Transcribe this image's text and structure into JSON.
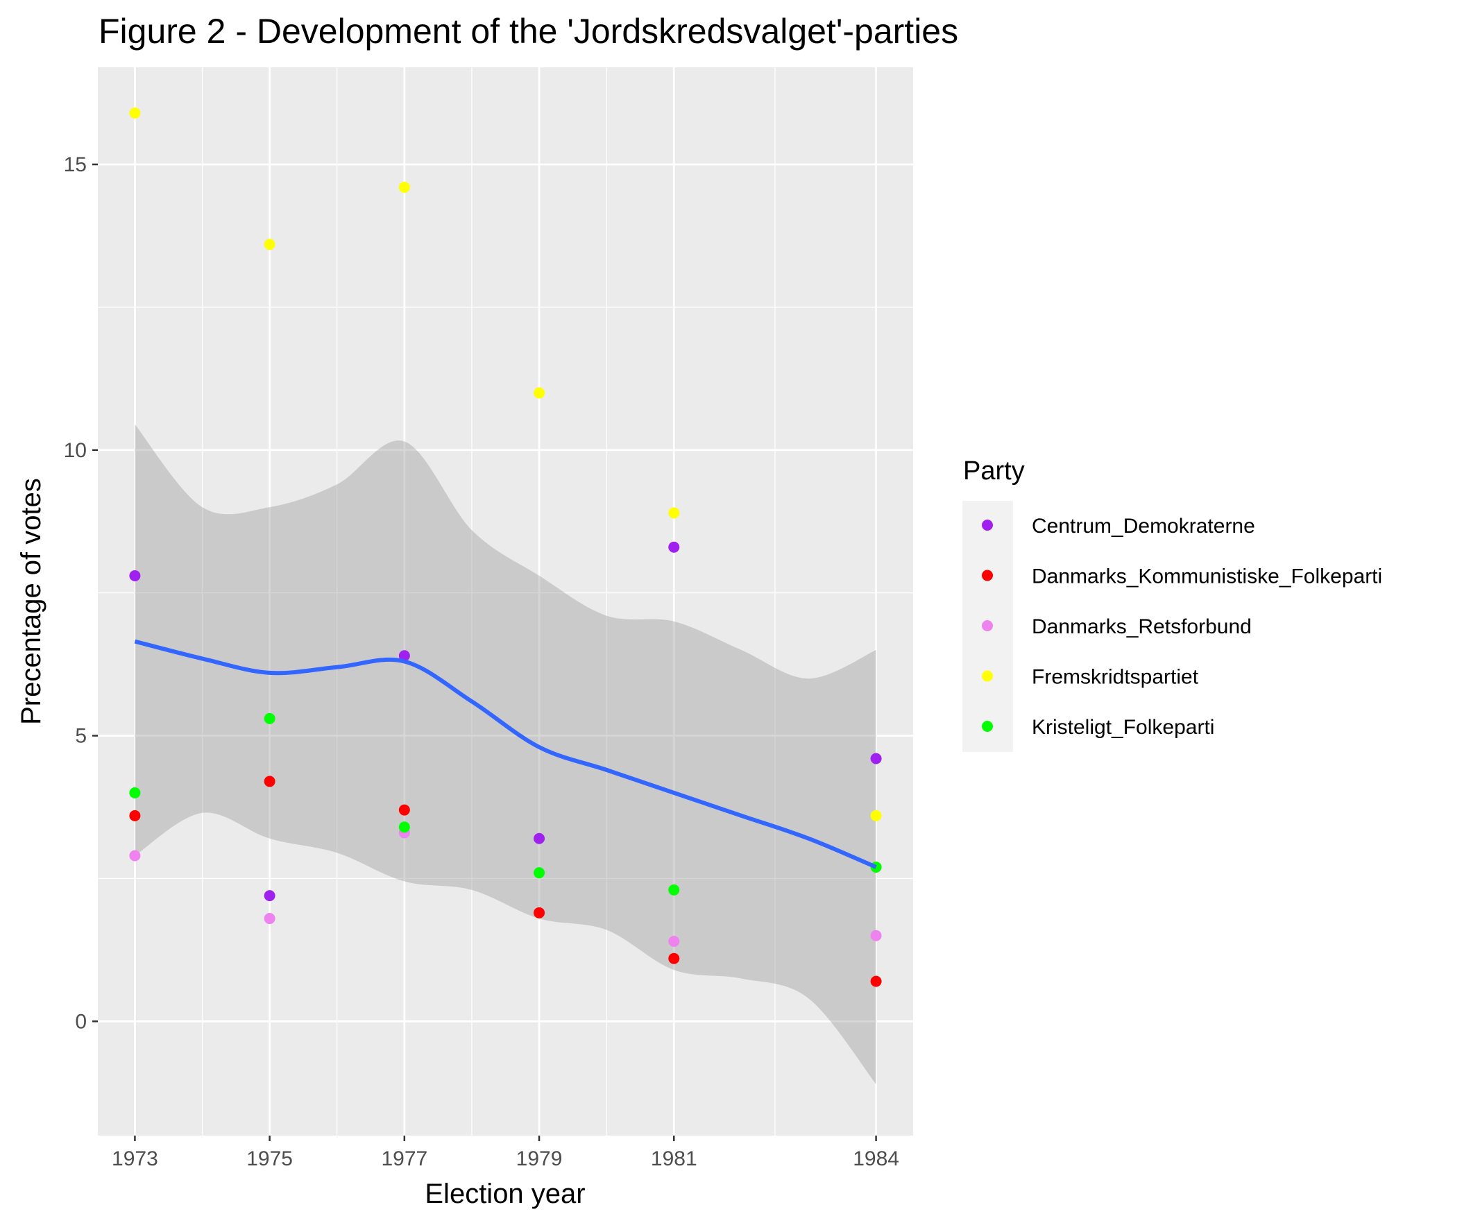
{
  "chart_data": {
    "type": "scatter",
    "title": "Figure 2 - Development of the 'Jordskredsvalget'-parties",
    "xlabel": "Election year",
    "ylabel": "Precentage of votes",
    "x_ticks": [
      1973,
      1975,
      1977,
      1979,
      1981,
      1984
    ],
    "y_ticks": [
      0,
      5,
      10,
      15
    ],
    "xlim": [
      1972.45,
      1984.55
    ],
    "ylim": [
      -2.0,
      16.7
    ],
    "grid": true,
    "legend": {
      "title": "Party",
      "position": "right"
    },
    "series": [
      {
        "name": "Centrum_Demokraterne",
        "color": "#a020f0",
        "points": [
          [
            1973,
            7.8
          ],
          [
            1975,
            2.2
          ],
          [
            1977,
            6.4
          ],
          [
            1979,
            3.2
          ],
          [
            1981,
            8.3
          ],
          [
            1984,
            4.6
          ]
        ]
      },
      {
        "name": "Danmarks_Kommunistiske_Folkeparti",
        "color": "#ff0000",
        "points": [
          [
            1973,
            3.6
          ],
          [
            1975,
            4.2
          ],
          [
            1977,
            3.7
          ],
          [
            1979,
            1.9
          ],
          [
            1981,
            1.1
          ],
          [
            1984,
            0.7
          ]
        ]
      },
      {
        "name": "Danmarks_Retsforbund",
        "color": "#ee82ee",
        "points": [
          [
            1973,
            2.9
          ],
          [
            1975,
            1.8
          ],
          [
            1977,
            3.3
          ],
          [
            1981,
            1.4
          ],
          [
            1984,
            1.5
          ]
        ]
      },
      {
        "name": "Fremskridtspartiet",
        "color": "#ffff00",
        "points": [
          [
            1973,
            15.9
          ],
          [
            1975,
            13.6
          ],
          [
            1977,
            14.6
          ],
          [
            1979,
            11.0
          ],
          [
            1981,
            8.9
          ],
          [
            1984,
            3.6
          ]
        ]
      },
      {
        "name": "Kristeligt_Folkeparti",
        "color": "#00ff00",
        "points": [
          [
            1973,
            4.0
          ],
          [
            1975,
            5.3
          ],
          [
            1977,
            3.4
          ],
          [
            1979,
            2.6
          ],
          [
            1981,
            2.3
          ],
          [
            1984,
            2.7
          ]
        ]
      }
    ],
    "smooth": {
      "color": "#3366ff",
      "line": [
        [
          1973,
          6.65
        ],
        [
          1974,
          6.35
        ],
        [
          1975,
          6.1
        ],
        [
          1976,
          6.2
        ],
        [
          1977,
          6.3
        ],
        [
          1978,
          5.6
        ],
        [
          1979,
          4.8
        ],
        [
          1980,
          4.4
        ],
        [
          1981,
          4.0
        ],
        [
          1982,
          3.6
        ],
        [
          1983,
          3.2
        ],
        [
          1984,
          2.7
        ]
      ],
      "ribbon_upper": [
        [
          1973,
          10.45
        ],
        [
          1974,
          9.0
        ],
        [
          1975,
          9.0
        ],
        [
          1976,
          9.4
        ],
        [
          1977,
          10.15
        ],
        [
          1978,
          8.6
        ],
        [
          1979,
          7.8
        ],
        [
          1980,
          7.1
        ],
        [
          1981,
          7.0
        ],
        [
          1982,
          6.5
        ],
        [
          1983,
          6.0
        ],
        [
          1984,
          6.5
        ]
      ],
      "ribbon_lower": [
        [
          1973,
          2.9
        ],
        [
          1974,
          3.65
        ],
        [
          1975,
          3.2
        ],
        [
          1976,
          2.95
        ],
        [
          1977,
          2.45
        ],
        [
          1978,
          2.3
        ],
        [
          1979,
          1.8
        ],
        [
          1980,
          1.6
        ],
        [
          1981,
          0.9
        ],
        [
          1982,
          0.75
        ],
        [
          1983,
          0.4
        ],
        [
          1984,
          -1.1
        ]
      ]
    }
  }
}
